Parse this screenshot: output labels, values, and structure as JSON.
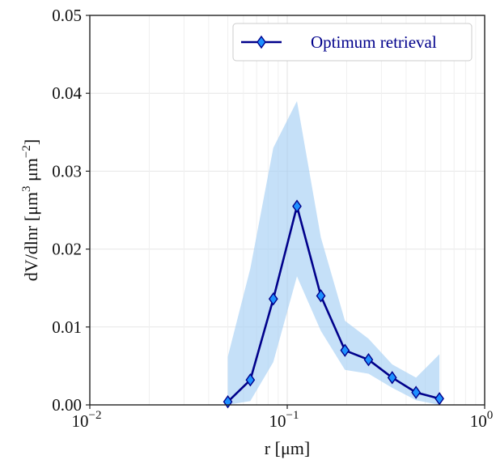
{
  "chart_data": {
    "type": "line",
    "xscale": "log",
    "xlim": [
      0.01,
      1
    ],
    "ylim": [
      0,
      0.05
    ],
    "grid": true,
    "legend_position": "top-right",
    "xlabel": "r [μm]",
    "ylabel": {
      "prefix": "dV/dlnr [μm",
      "sup1": "3",
      "middle": " μm",
      "sup2": "−2",
      "suffix": "]"
    },
    "x_ticks": [
      {
        "value": 0.01,
        "base": "10",
        "exp": "−2"
      },
      {
        "value": 0.1,
        "base": "10",
        "exp": "−1"
      },
      {
        "value": 1,
        "base": "10",
        "exp": "0"
      }
    ],
    "y_ticks": [
      {
        "value": 0,
        "label": "0.00"
      },
      {
        "value": 0.01,
        "label": "0.01"
      },
      {
        "value": 0.02,
        "label": "0.02"
      },
      {
        "value": 0.03,
        "label": "0.03"
      },
      {
        "value": 0.04,
        "label": "0.04"
      },
      {
        "value": 0.05,
        "label": "0.05"
      }
    ],
    "series": [
      {
        "name": "Optimum retrieval",
        "color": "#00008b",
        "marker_color": "#1e90ff",
        "x": [
          0.05,
          0.065,
          0.085,
          0.112,
          0.148,
          0.196,
          0.258,
          0.34,
          0.449,
          0.59
        ],
        "y": [
          0.0004,
          0.0032,
          0.0136,
          0.0255,
          0.014,
          0.007,
          0.0058,
          0.0035,
          0.0016,
          0.0008
        ]
      }
    ],
    "uncertainty_band": {
      "color": "#a6cff5",
      "x": [
        0.05,
        0.065,
        0.085,
        0.112,
        0.148,
        0.196,
        0.258,
        0.34,
        0.449,
        0.59
      ],
      "lower": [
        0.0,
        0.0005,
        0.0055,
        0.0165,
        0.0095,
        0.0045,
        0.004,
        0.0022,
        0.0006,
        0.0
      ],
      "upper": [
        0.0062,
        0.0175,
        0.033,
        0.039,
        0.0215,
        0.0108,
        0.0085,
        0.0052,
        0.0035,
        0.0065
      ]
    }
  }
}
